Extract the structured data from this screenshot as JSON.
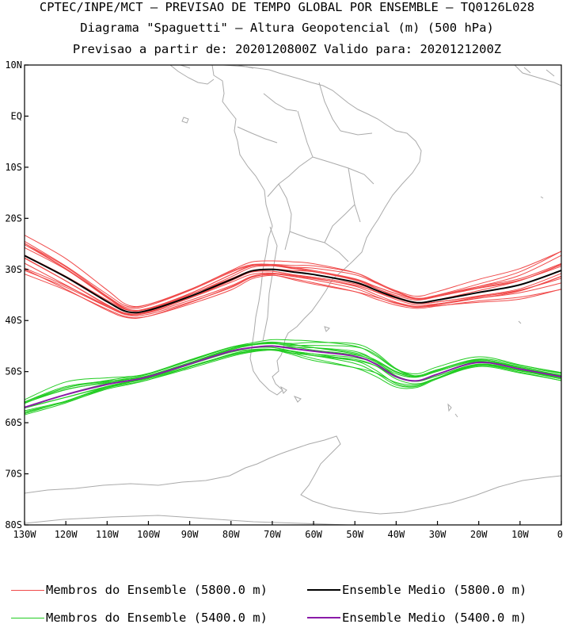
{
  "header": {
    "line1": "CPTEC/INPE/MCT — PREVISAO DE TEMPO GLOBAL POR ENSEMBLE — TQ0126L028",
    "line2": "Diagrama \"Spaguetti\" — Altura Geopotencial (m) (500 hPa)",
    "line3": "Previsao a partir de: 2020120800Z  Valido para: 2020121200Z"
  },
  "legend": {
    "members_5800": "Membros do Ensemble (5800.0 m)",
    "mean_5800": "Ensemble Medio (5800.0 m)",
    "members_5400": "Membros do Ensemble (5400.0 m)",
    "mean_5400": "Ensemble Medio (5400.0 m)"
  },
  "colors": {
    "members_5800": "#f04a4a",
    "mean_5800": "#000000",
    "members_5400": "#22cc22",
    "mean_5400": "#8a1aa8",
    "coastline": "#aaaaaa"
  },
  "chart_data": {
    "type": "line",
    "title": "Diagrama \"Spaguetti\" — Altura Geopotencial (m) (500 hPa)",
    "xlim": [
      -130,
      0
    ],
    "ylim": [
      -80,
      10
    ],
    "x_ticks": [
      {
        "value": -130,
        "label": "130W"
      },
      {
        "value": -120,
        "label": "120W"
      },
      {
        "value": -110,
        "label": "110W"
      },
      {
        "value": -100,
        "label": "100W"
      },
      {
        "value": -90,
        "label": "90W"
      },
      {
        "value": -80,
        "label": "80W"
      },
      {
        "value": -70,
        "label": "70W"
      },
      {
        "value": -60,
        "label": "60W"
      },
      {
        "value": -50,
        "label": "50W"
      },
      {
        "value": -40,
        "label": "40W"
      },
      {
        "value": -30,
        "label": "30W"
      },
      {
        "value": -20,
        "label": "20W"
      },
      {
        "value": -10,
        "label": "10W"
      },
      {
        "value": 0,
        "label": "0"
      }
    ],
    "y_ticks": [
      {
        "value": 10,
        "label": "10N"
      },
      {
        "value": 0,
        "label": "EQ"
      },
      {
        "value": -10,
        "label": "10S"
      },
      {
        "value": -20,
        "label": "20S"
      },
      {
        "value": -30,
        "label": "30S"
      },
      {
        "value": -40,
        "label": "40S"
      },
      {
        "value": -50,
        "label": "50S"
      },
      {
        "value": -60,
        "label": "60S"
      },
      {
        "value": -70,
        "label": "70S"
      },
      {
        "value": -80,
        "label": "80S"
      }
    ],
    "x": [
      -130,
      -120,
      -110,
      -105,
      -100,
      -90,
      -80,
      -75,
      -70,
      -65,
      -60,
      -50,
      -45,
      -40,
      -35,
      -30,
      -20,
      -10,
      0
    ],
    "series": [
      {
        "name": "Ensemble Medio (5800.0 m)",
        "kind": "mean",
        "color_key": "mean_5800",
        "values": [
          -27.3,
          -31.5,
          -36.3,
          -38.3,
          -38.0,
          -35.3,
          -32.0,
          -30.3,
          -30.0,
          -30.5,
          -31.0,
          -32.5,
          -34.0,
          -35.5,
          -36.5,
          -36.0,
          -34.5,
          -33.0,
          -30.2
        ]
      },
      {
        "name": "Ensemble Medio (5400.0 m)",
        "kind": "mean",
        "color_key": "mean_5400",
        "values": [
          -57.0,
          -54.5,
          -52.5,
          -51.8,
          -51.0,
          -48.5,
          -46.0,
          -45.3,
          -45.0,
          -45.5,
          -46.0,
          -47.0,
          -48.5,
          -51.0,
          -51.8,
          -50.5,
          -48.2,
          -49.5,
          -51.0
        ]
      }
    ],
    "ensemble_members": [
      {
        "group": "5800",
        "count": 14,
        "color_key": "members_5800",
        "base_series": "Ensemble Medio (5800.0 m)",
        "offsets": [
          2.5,
          -2.0,
          1.6,
          -1.2,
          0.8,
          -0.6,
          2.0,
          -1.6,
          1.2,
          -0.4,
          0.4,
          -2.2,
          1.0,
          -0.9
        ],
        "spread_profile": [
          1.6,
          1.3,
          0.8,
          0.5,
          0.5,
          0.6,
          0.8,
          0.7,
          0.6,
          0.7,
          0.8,
          0.8,
          0.7,
          0.6,
          0.5,
          0.6,
          0.9,
          1.2,
          1.6
        ]
      },
      {
        "group": "5400",
        "count": 14,
        "color_key": "members_5400",
        "base_series": "Ensemble Medio (5400.0 m)",
        "offsets": [
          1.5,
          -1.2,
          1.0,
          -0.8,
          0.6,
          -0.4,
          1.3,
          -1.0,
          0.8,
          -0.2,
          0.3,
          -1.4,
          0.5,
          -0.6
        ],
        "spread_profile": [
          1.0,
          1.4,
          0.7,
          0.5,
          0.4,
          0.5,
          0.6,
          0.6,
          0.7,
          0.9,
          1.2,
          1.5,
          1.4,
          1.2,
          0.9,
          0.8,
          0.6,
          0.5,
          0.5
        ]
      }
    ]
  }
}
